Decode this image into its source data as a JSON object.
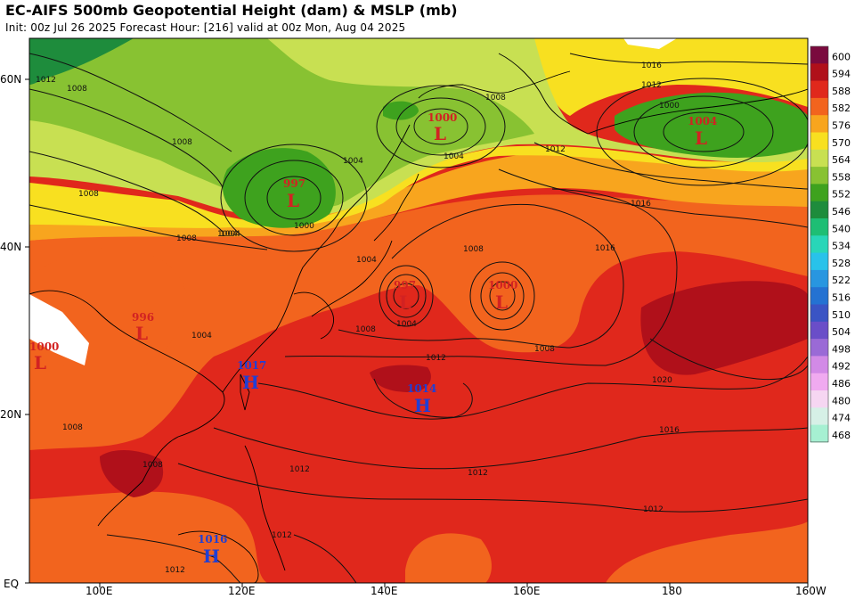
{
  "header": {
    "title": "EC-AIFS 500mb Geopotential Height (dam) & MSLP (mb)",
    "subtitle": "Init: 00z Jul 26 2025   Forecast Hour: [216]   valid at 00z Mon, Aug 04 2025"
  },
  "axes": {
    "lat_labels": [
      "60N",
      "40N",
      "20N",
      "EQ"
    ],
    "lon_labels": [
      "100E",
      "120E",
      "140E",
      "160E",
      "180",
      "160W"
    ]
  },
  "colorbar": {
    "levels": [
      "600",
      "594",
      "588",
      "582",
      "576",
      "570",
      "564",
      "558",
      "552",
      "546",
      "540",
      "534",
      "528",
      "522",
      "516",
      "510",
      "504",
      "498",
      "492",
      "486",
      "480",
      "474",
      "468"
    ],
    "colors": [
      "#7a0a3e",
      "#b0101a",
      "#e0281c",
      "#f2641e",
      "#f8a51e",
      "#f8e020",
      "#c8e052",
      "#88c232",
      "#3ea21e",
      "#1e8c3c",
      "#1ebe74",
      "#28d6b8",
      "#28c2ea",
      "#2896e0",
      "#2472d2",
      "#3a54c4",
      "#6a4ec8",
      "#9a6ad6",
      "#d28ae6",
      "#f0aaf0",
      "#f6d6f2",
      "#d6f0e6",
      "#a6f0d2"
    ]
  },
  "pressure_centers": [
    {
      "type": "L",
      "value": "1000",
      "color": "#d22222"
    },
    {
      "type": "L",
      "value": "1004",
      "color": "#d22222"
    },
    {
      "type": "L",
      "value": "997",
      "color": "#d22222"
    },
    {
      "type": "L",
      "value": "997",
      "color": "#d22222"
    },
    {
      "type": "L",
      "value": "1000",
      "color": "#d22222"
    },
    {
      "type": "L",
      "value": "996",
      "color": "#d22222"
    },
    {
      "type": "L",
      "value": "1000",
      "color": "#d22222"
    },
    {
      "type": "H",
      "value": "1017",
      "color": "#1f3fd6"
    },
    {
      "type": "H",
      "value": "1014",
      "color": "#1f3fd6"
    },
    {
      "type": "H",
      "value": "1016",
      "color": "#1f3fd6"
    }
  ],
  "isobar_labels": [
    "1012",
    "1008",
    "1016",
    "1004",
    "1008",
    "1008",
    "1004",
    "1000",
    "1004",
    "1008",
    "1012",
    "1016",
    "1008",
    "1004",
    "1000",
    "1004",
    "1008",
    "1012",
    "1008",
    "1004",
    "1012",
    "1012",
    "1016",
    "1020",
    "1016",
    "1012",
    "1012",
    "1012",
    "1008",
    "1008",
    "1004",
    "1008",
    "1012"
  ]
}
